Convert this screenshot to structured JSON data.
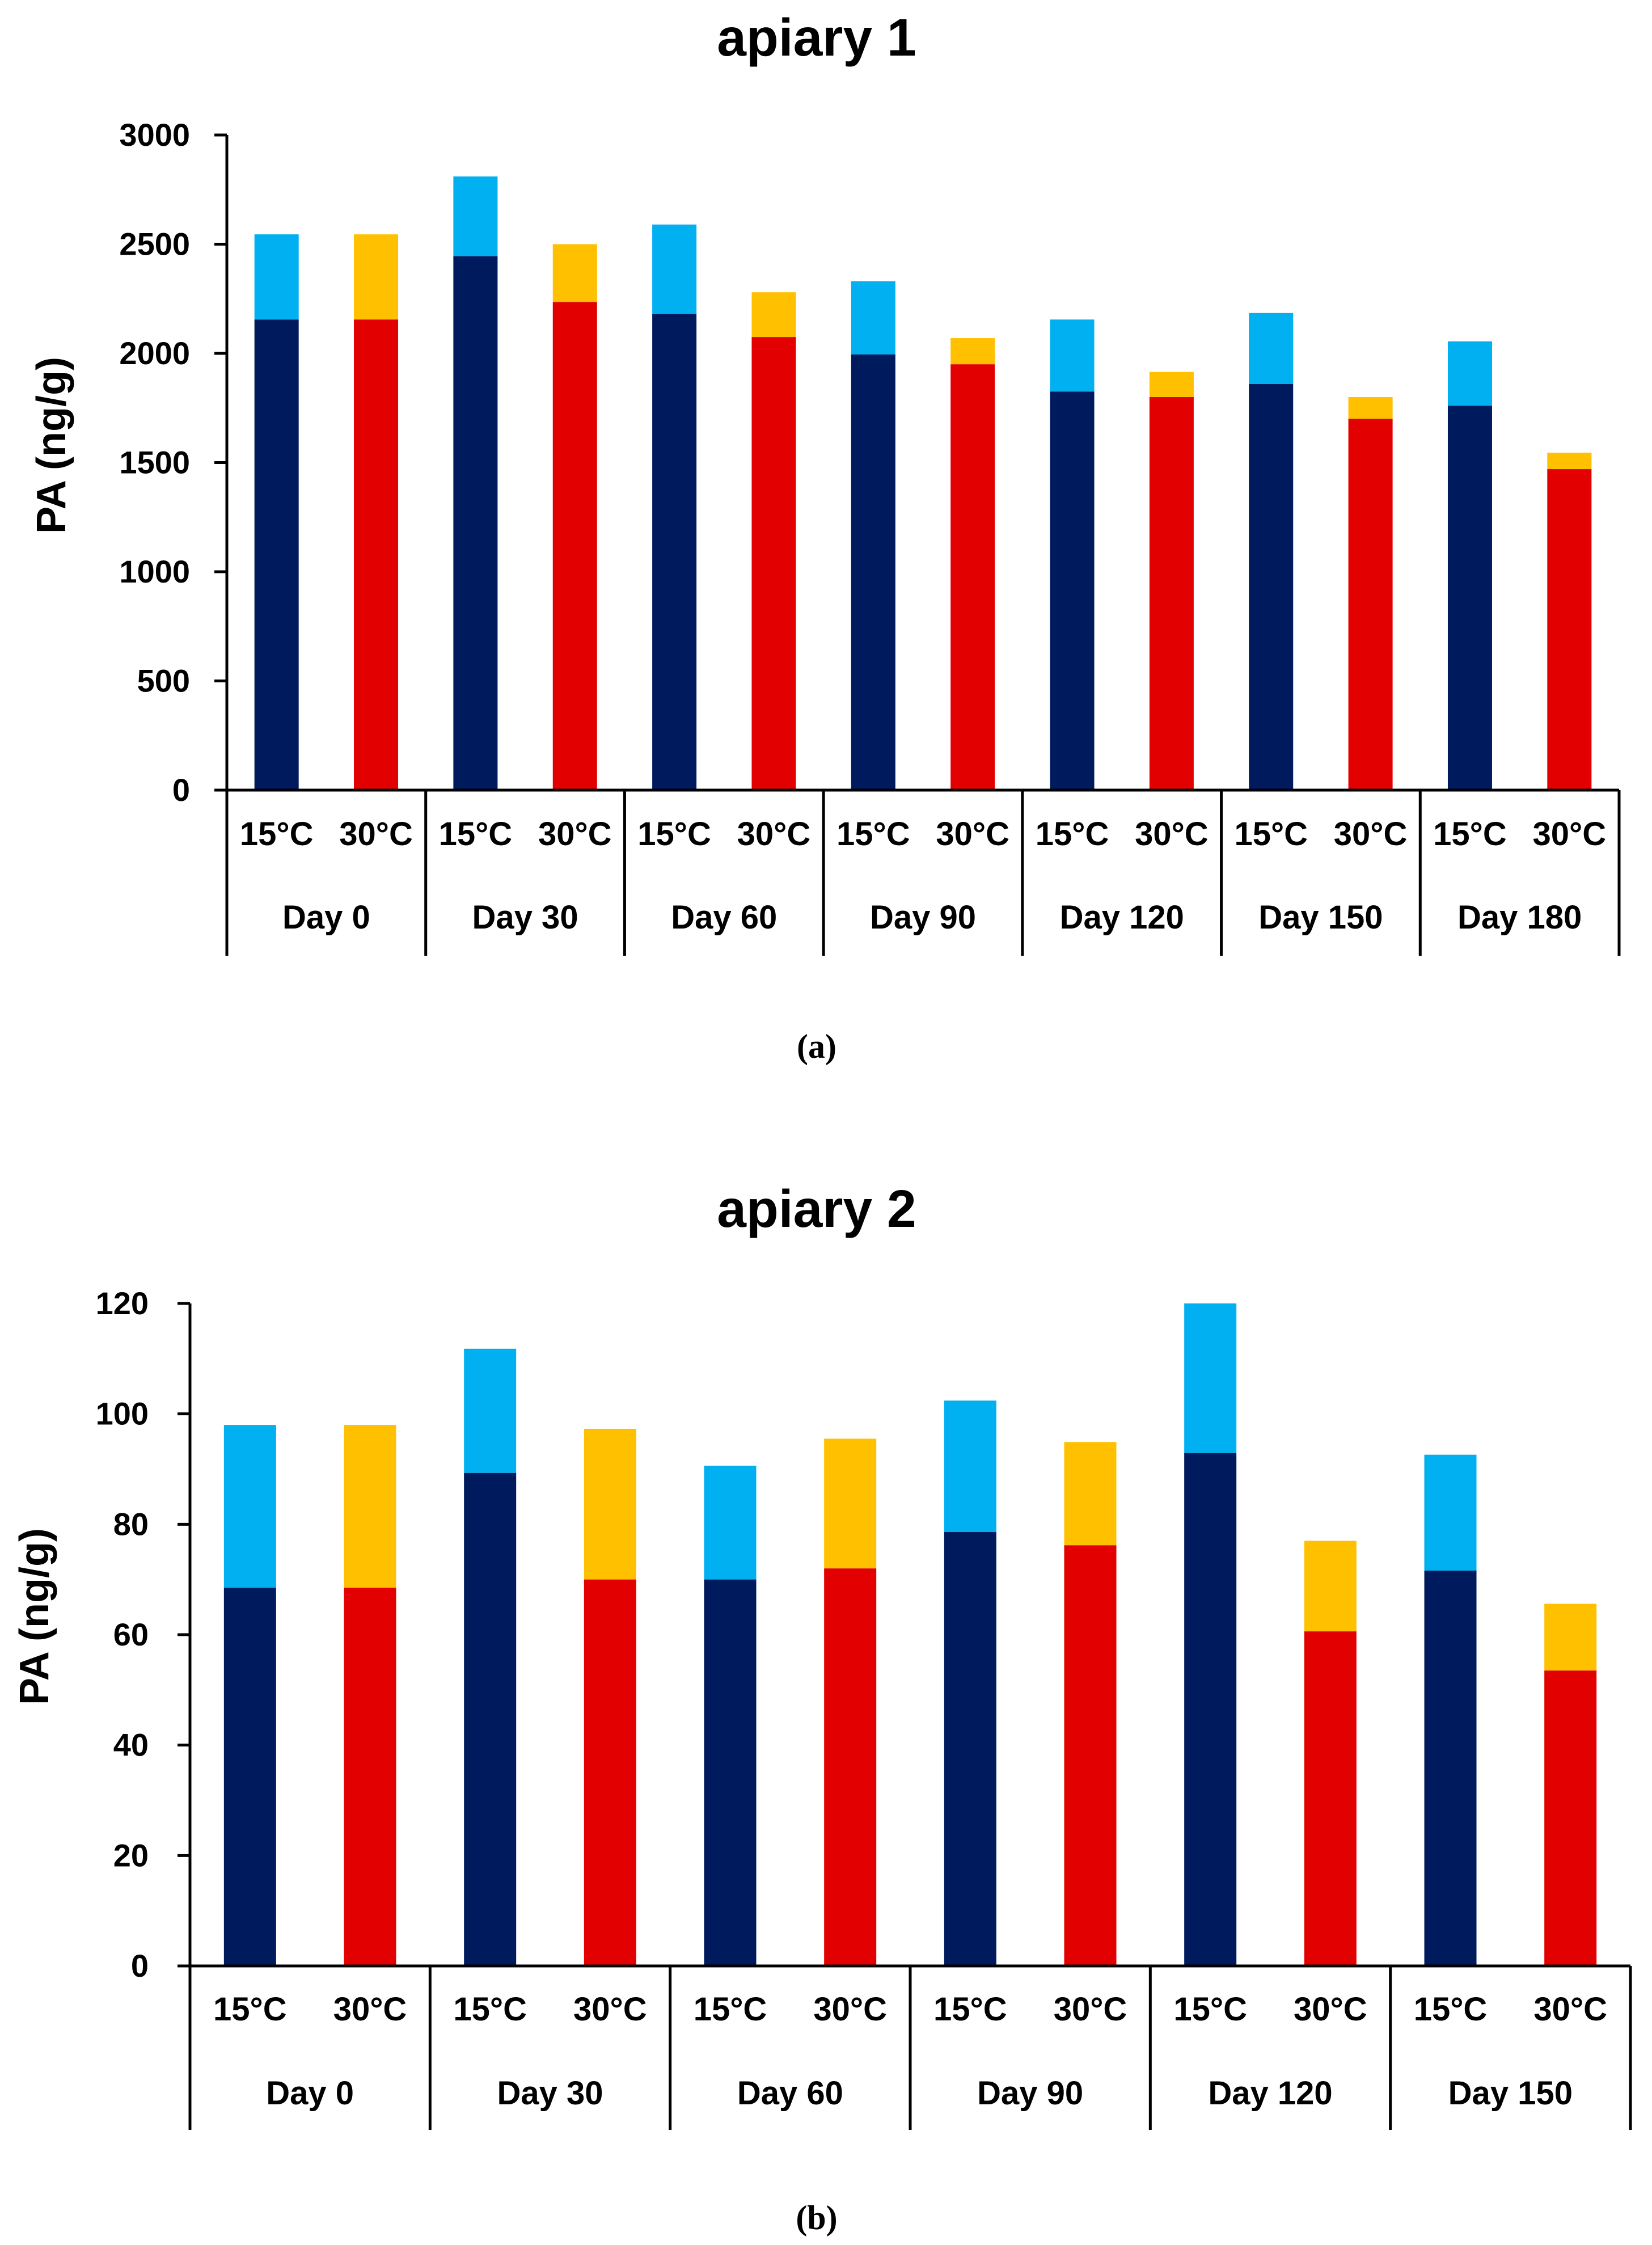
{
  "colors": {
    "base_15": "#001A5E",
    "top_15": "#00B0F0",
    "base_30": "#E30000",
    "top_30": "#FFC000"
  },
  "chart_data": [
    {
      "type": "bar",
      "stacked": true,
      "title": "apiary 1",
      "caption": "(a)",
      "ylabel": "PA (ng/g)",
      "xlabel": "",
      "ylim": [
        0,
        3000
      ],
      "yticks": [
        0,
        500,
        1000,
        1500,
        2000,
        2500,
        3000
      ],
      "categories": [
        "Day 0",
        "Day 30",
        "Day 60",
        "Day 90",
        "Day 120",
        "Day 150",
        "Day 180"
      ],
      "subcategories": [
        "15°C",
        "30°C"
      ],
      "bars": [
        {
          "group": "Day 0",
          "sub": "15°C",
          "base": 2155,
          "top": 2545
        },
        {
          "group": "Day 0",
          "sub": "30°C",
          "base": 2155,
          "top": 2545
        },
        {
          "group": "Day 30",
          "sub": "15°C",
          "base": 2445,
          "top": 2810
        },
        {
          "group": "Day 30",
          "sub": "30°C",
          "base": 2235,
          "top": 2500
        },
        {
          "group": "Day 60",
          "sub": "15°C",
          "base": 2180,
          "top": 2590
        },
        {
          "group": "Day 60",
          "sub": "30°C",
          "base": 2075,
          "top": 2280
        },
        {
          "group": "Day 90",
          "sub": "15°C",
          "base": 1995,
          "top": 2330
        },
        {
          "group": "Day 90",
          "sub": "30°C",
          "base": 1950,
          "top": 2070
        },
        {
          "group": "Day 120",
          "sub": "15°C",
          "base": 1825,
          "top": 2155
        },
        {
          "group": "Day 120",
          "sub": "30°C",
          "base": 1800,
          "top": 1915
        },
        {
          "group": "Day 150",
          "sub": "15°C",
          "base": 1860,
          "top": 2185
        },
        {
          "group": "Day 150",
          "sub": "30°C",
          "base": 1700,
          "top": 1800
        },
        {
          "group": "Day 180",
          "sub": "15°C",
          "base": 1760,
          "top": 2055
        },
        {
          "group": "Day 180",
          "sub": "30°C",
          "base": 1470,
          "top": 1545
        }
      ]
    },
    {
      "type": "bar",
      "stacked": true,
      "title": "apiary 2",
      "caption": "(b)",
      "ylabel": "PA (ng/g)",
      "xlabel": "",
      "ylim": [
        0,
        120
      ],
      "yticks": [
        0,
        20,
        40,
        60,
        80,
        100,
        120
      ],
      "categories": [
        "Day 0",
        "Day 30",
        "Day 60",
        "Day 90",
        "Day 120",
        "Day 150"
      ],
      "subcategories": [
        "15°C",
        "30°C"
      ],
      "bars": [
        {
          "group": "Day 0",
          "sub": "15°C",
          "base": 68.5,
          "top": 98
        },
        {
          "group": "Day 0",
          "sub": "30°C",
          "base": 68.5,
          "top": 98
        },
        {
          "group": "Day 30",
          "sub": "15°C",
          "base": 89.3,
          "top": 111.8
        },
        {
          "group": "Day 30",
          "sub": "30°C",
          "base": 70,
          "top": 97.3
        },
        {
          "group": "Day 60",
          "sub": "15°C",
          "base": 70,
          "top": 90.6
        },
        {
          "group": "Day 60",
          "sub": "30°C",
          "base": 72,
          "top": 95.5
        },
        {
          "group": "Day 90",
          "sub": "15°C",
          "base": 78.6,
          "top": 102.4
        },
        {
          "group": "Day 90",
          "sub": "30°C",
          "base": 76.2,
          "top": 94.9
        },
        {
          "group": "Day 120",
          "sub": "15°C",
          "base": 92.9,
          "top": 120
        },
        {
          "group": "Day 120",
          "sub": "30°C",
          "base": 60.6,
          "top": 77
        },
        {
          "group": "Day 150",
          "sub": "15°C",
          "base": 71.6,
          "top": 92.6
        },
        {
          "group": "Day 150",
          "sub": "30°C",
          "base": 53.5,
          "top": 65.6
        }
      ]
    }
  ]
}
